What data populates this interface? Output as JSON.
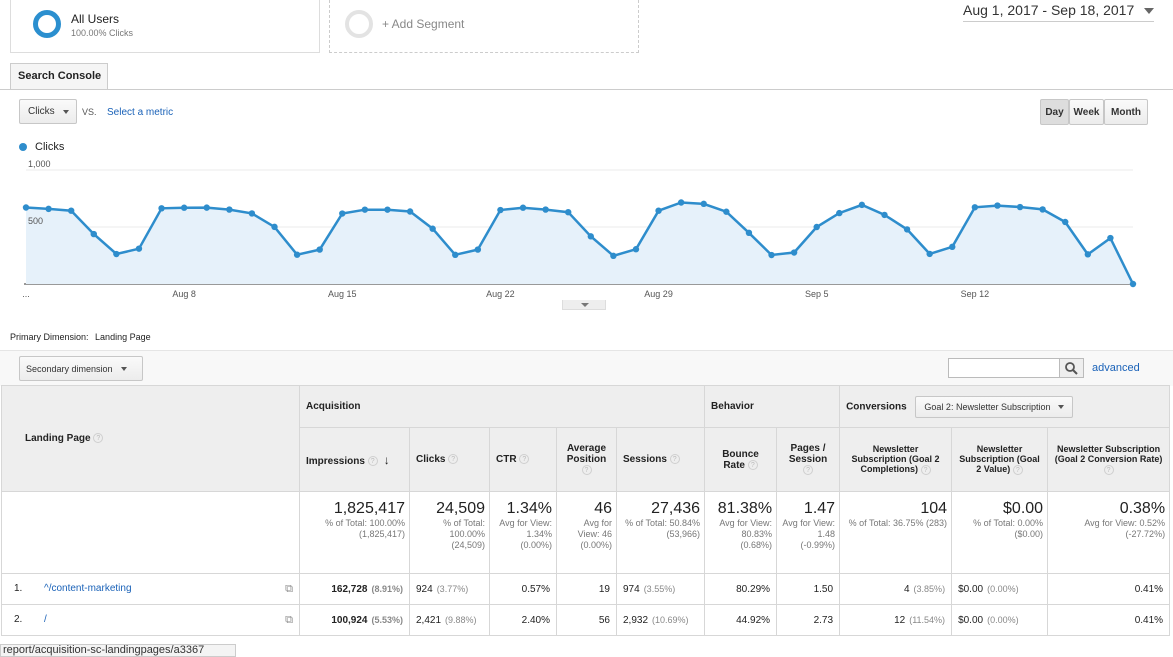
{
  "segments": {
    "all_users": {
      "label": "All Users",
      "sub": "100.00% Clicks"
    },
    "add_segment": "+ Add Segment"
  },
  "date_range": "Aug 1, 2017 - Sep 18, 2017",
  "tab": "Search Console",
  "controls": {
    "metric": "Clicks",
    "vs": "VS.",
    "select_metric": "Select a metric",
    "granularity": [
      "Day",
      "Week",
      "Month"
    ],
    "active_granularity": "Day"
  },
  "chart_data": {
    "type": "area",
    "series": [
      {
        "name": "Clicks",
        "values": [
          671,
          659,
          643,
          438,
          263,
          310,
          664,
          669,
          670,
          653,
          619,
          501,
          257,
          302,
          618,
          652,
          652,
          636,
          485,
          256,
          302,
          649,
          669,
          653,
          630,
          418,
          247,
          305,
          643,
          715,
          703,
          634,
          449,
          254,
          276,
          500,
          622,
          694,
          606,
          479,
          264,
          326,
          673,
          688,
          675,
          654,
          544,
          260,
          403,
          0
        ]
      }
    ],
    "color": "#2e8dcc",
    "ylim": [
      0,
      1000
    ],
    "yticks": [
      "1,000",
      "500"
    ],
    "xticks": [
      "...",
      "Aug 8",
      "Aug 15",
      "Aug 22",
      "Aug 29",
      "Sep 5",
      "Sep 12"
    ]
  },
  "primary_dimension": {
    "label": "Primary Dimension:",
    "value": "Landing Page"
  },
  "secondary_dimension": "Secondary dimension",
  "advanced": "advanced",
  "table": {
    "dimension_header": "Landing Page",
    "groups": {
      "acquisition": "Acquisition",
      "behavior": "Behavior",
      "conversions": "Conversions",
      "goal_select": "Goal 2: Newsletter Subscription"
    },
    "columns": [
      "Impressions",
      "Clicks",
      "CTR",
      "Average Position",
      "Sessions",
      "Bounce Rate",
      "Pages / Session",
      "Newsletter Subscription (Goal 2 Completions)",
      "Newsletter Subscription (Goal 2 Value)",
      "Newsletter Subscription (Goal 2 Conversion Rate)"
    ],
    "totals": [
      {
        "value": "1,825,417",
        "sub": "% of Total: 100.00% (1,825,417)"
      },
      {
        "value": "24,509",
        "sub": "% of Total: 100.00% (24,509)"
      },
      {
        "value": "1.34%",
        "sub": "Avg for View: 1.34% (0.00%)"
      },
      {
        "value": "46",
        "sub": "Avg for View: 46 (0.00%)"
      },
      {
        "value": "27,436",
        "sub": "% of Total: 50.84% (53,966)"
      },
      {
        "value": "81.38%",
        "sub": "Avg for View: 80.83% (0.68%)"
      },
      {
        "value": "1.47",
        "sub": "Avg for View: 1.48 (-0.99%)"
      },
      {
        "value": "104",
        "sub": "% of Total: 36.75% (283)"
      },
      {
        "value": "$0.00",
        "sub": "% of Total: 0.00% ($0.00)"
      },
      {
        "value": "0.38%",
        "sub": "Avg for View: 0.52% (-27.72%)"
      }
    ],
    "rows": [
      {
        "index": "1.",
        "page": "^/content-marketing",
        "cells": [
          [
            "162,728",
            "(8.91%)"
          ],
          [
            "924",
            "(3.77%)"
          ],
          [
            "0.57%",
            ""
          ],
          [
            "19",
            ""
          ],
          [
            "974",
            "(3.55%)"
          ],
          [
            "80.29%",
            ""
          ],
          [
            "1.50",
            ""
          ],
          [
            "4",
            "(3.85%)"
          ],
          [
            "$0.00",
            "(0.00%)"
          ],
          [
            "0.41%",
            ""
          ]
        ]
      },
      {
        "index": "2.",
        "page": "/",
        "cells": [
          [
            "100,924",
            "(5.53%)"
          ],
          [
            "2,421",
            "(9.88%)"
          ],
          [
            "2.40%",
            ""
          ],
          [
            "56",
            ""
          ],
          [
            "2,932",
            "(10.69%)"
          ],
          [
            "44.92%",
            ""
          ],
          [
            "2.73",
            ""
          ],
          [
            "12",
            "(11.54%)"
          ],
          [
            "$0.00",
            "(0.00%)"
          ],
          [
            "0.41%",
            ""
          ]
        ]
      }
    ]
  },
  "status_url": "report/acquisition-sc-landingpages/a3367"
}
